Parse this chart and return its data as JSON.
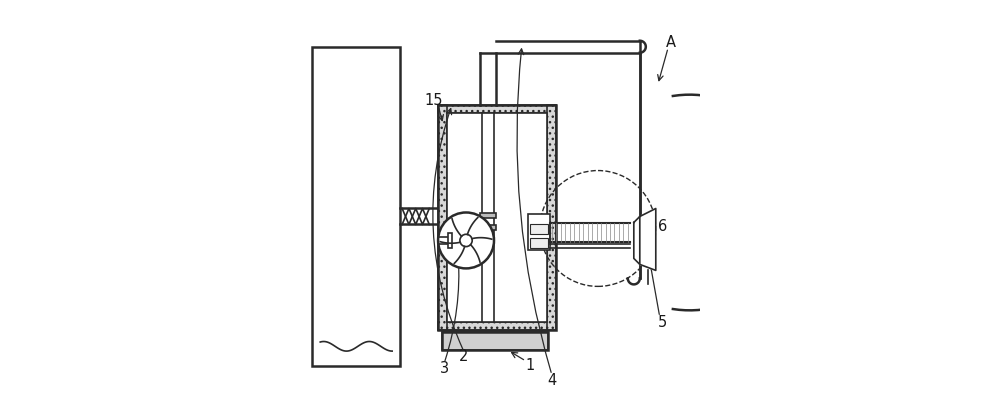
{
  "bg_color": "#ffffff",
  "line_color": "#2a2a2a",
  "label_color": "#1a1a1a",
  "figsize": [
    10.0,
    4.05
  ],
  "dpi": 100,
  "lw_main": 1.2,
  "lw_thick": 1.8
}
